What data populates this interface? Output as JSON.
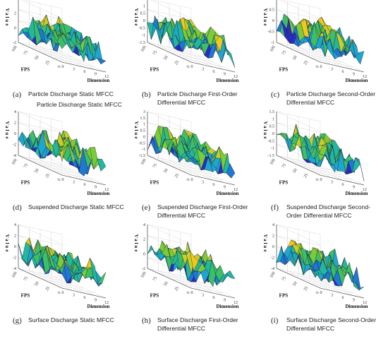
{
  "chart_data": [
    {
      "type": "surface",
      "letter": "(a)",
      "caption": "Particle Discharge Static MFCC",
      "extra_caption": "Particle Discharge Static MFCC",
      "xlabel": "Dimension",
      "ylabel": "FPS",
      "zlabel": "Value",
      "xticks": [
        "0",
        "3",
        "6",
        "9",
        "12"
      ],
      "yticks": [
        "0",
        "25",
        "50",
        "75",
        "100"
      ],
      "zticks": [
        "4",
        "2",
        "0",
        "-2"
      ],
      "grid": true,
      "seed": 11
    },
    {
      "type": "surface",
      "letter": "(b)",
      "caption": "Particle Discharge First-Order Differential MFCC",
      "xlabel": "Dimension",
      "ylabel": "FPS",
      "zlabel": "Value",
      "xticks": [
        "0",
        "3",
        "6",
        "9",
        "12"
      ],
      "yticks": [
        "0",
        "25",
        "50",
        "75",
        "100"
      ],
      "zticks": [
        "1.5",
        "1",
        "0.5",
        "0",
        "-0.5",
        "-1",
        "-1.5"
      ],
      "grid": true,
      "seed": 23
    },
    {
      "type": "surface",
      "letter": "(c)",
      "caption": "Particle Discharge Second-Order Differential MFCC",
      "xlabel": "Dimension",
      "ylabel": "FPS",
      "zlabel": "Value",
      "xticks": [
        "0",
        "3",
        "6",
        "9",
        "12"
      ],
      "yticks": [
        "0",
        "25",
        "50",
        "75",
        "100"
      ],
      "zticks": [
        "1",
        "0.5",
        "0",
        "-0.5",
        "-1"
      ],
      "grid": true,
      "seed": 37
    },
    {
      "type": "surface",
      "letter": "(d)",
      "caption": "Suspended Discharge Static MFCC",
      "xlabel": "Dimension",
      "ylabel": "FPS",
      "zlabel": "Value",
      "xticks": [
        "0",
        "3",
        "6",
        "9",
        "12"
      ],
      "yticks": [
        "0",
        "25",
        "50",
        "75",
        "100"
      ],
      "zticks": [
        "4",
        "2",
        "0",
        "-2",
        "-4"
      ],
      "grid": true,
      "seed": 41
    },
    {
      "type": "surface",
      "letter": "(e)",
      "caption": "Suspended Discharge First-Order Differential MFCC",
      "xlabel": "Dimension",
      "ylabel": "FPS",
      "zlabel": "Value",
      "xticks": [
        "0",
        "3",
        "6",
        "9",
        "12"
      ],
      "yticks": [
        "0",
        "25",
        "50",
        "75",
        "100"
      ],
      "zticks": [
        "3",
        "1.5",
        "1",
        "0.5",
        "0",
        "-0.5",
        "-1",
        "-1.5"
      ],
      "grid": true,
      "seed": 53
    },
    {
      "type": "surface",
      "letter": "(f)",
      "caption": "Suspended Discharge Second-Order Differential MFCC",
      "xlabel": "Dimension",
      "ylabel": "FPS",
      "zlabel": "Value",
      "xticks": [
        "0",
        "3",
        "6",
        "9",
        "12"
      ],
      "yticks": [
        "0",
        "25",
        "50",
        "75",
        "100"
      ],
      "zticks": [
        "1.5",
        "1",
        "0.5",
        "0",
        "-0.5",
        "-1",
        "-1.5"
      ],
      "grid": true,
      "seed": 67
    },
    {
      "type": "surface",
      "letter": "(g)",
      "caption": "Surface Discharge Static MFCC",
      "xlabel": "Dimension",
      "ylabel": "FPS",
      "zlabel": "Value",
      "xticks": [
        "0",
        "3",
        "6",
        "9",
        "12"
      ],
      "yticks": [
        "0",
        "25",
        "50",
        "75",
        "100"
      ],
      "zticks": [
        "4",
        "2",
        "0",
        "-2",
        "-4"
      ],
      "grid": true,
      "seed": 71
    },
    {
      "type": "surface",
      "letter": "(h)",
      "caption": "Surface Discharge First-Order Differential MFCC",
      "xlabel": "Dimension",
      "ylabel": "FPS",
      "zlabel": "Value",
      "xticks": [
        "0",
        "3",
        "6",
        "9",
        "12"
      ],
      "yticks": [
        "0",
        "25",
        "50",
        "75",
        "100"
      ],
      "zticks": [
        "4",
        "2",
        "0",
        "-2"
      ],
      "grid": true,
      "seed": 83
    },
    {
      "type": "surface",
      "letter": "(i)",
      "caption": "Surface Discharge Second-Order Differential MFCC",
      "xlabel": "Dimension",
      "ylabel": "FPS",
      "zlabel": "Value",
      "xticks": [
        "0",
        "3",
        "6",
        "9",
        "12"
      ],
      "yticks": [
        "0",
        "25",
        "50",
        "75",
        "100"
      ],
      "zticks": [
        "4",
        "2",
        "0",
        "-2",
        "-4"
      ],
      "grid": true,
      "seed": 97
    }
  ]
}
